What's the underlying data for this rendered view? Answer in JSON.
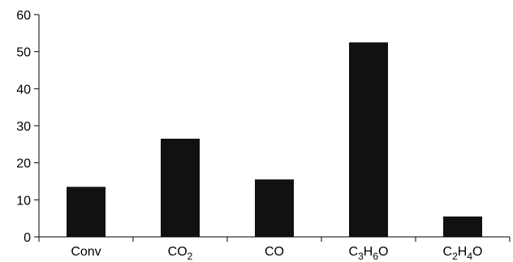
{
  "chart_data": {
    "type": "bar",
    "title": "",
    "xlabel": "",
    "ylabel": "",
    "ylim": [
      0,
      60
    ],
    "yticks": [
      0,
      10,
      20,
      30,
      40,
      50,
      60
    ],
    "grid": false,
    "legend": "none",
    "categories": [
      {
        "label": "Conv",
        "base": "Conv",
        "parts": []
      },
      {
        "label": "CO2",
        "base": "CO",
        "parts": [
          {
            "sub": "2"
          }
        ]
      },
      {
        "label": "CO",
        "base": "CO",
        "parts": []
      },
      {
        "label": "C3H6O",
        "base": "C",
        "parts": [
          {
            "sub": "3"
          },
          {
            "text": "H"
          },
          {
            "sub": "6"
          },
          {
            "text": "O"
          }
        ]
      },
      {
        "label": "C2H4O",
        "base": "C",
        "parts": [
          {
            "sub": "2"
          },
          {
            "text": "H"
          },
          {
            "sub": "4"
          },
          {
            "text": "O"
          }
        ]
      }
    ],
    "values": [
      13.5,
      26.5,
      15.5,
      52.5,
      5.5
    ],
    "bar_color": "#111111",
    "axis_color": "#000000"
  }
}
